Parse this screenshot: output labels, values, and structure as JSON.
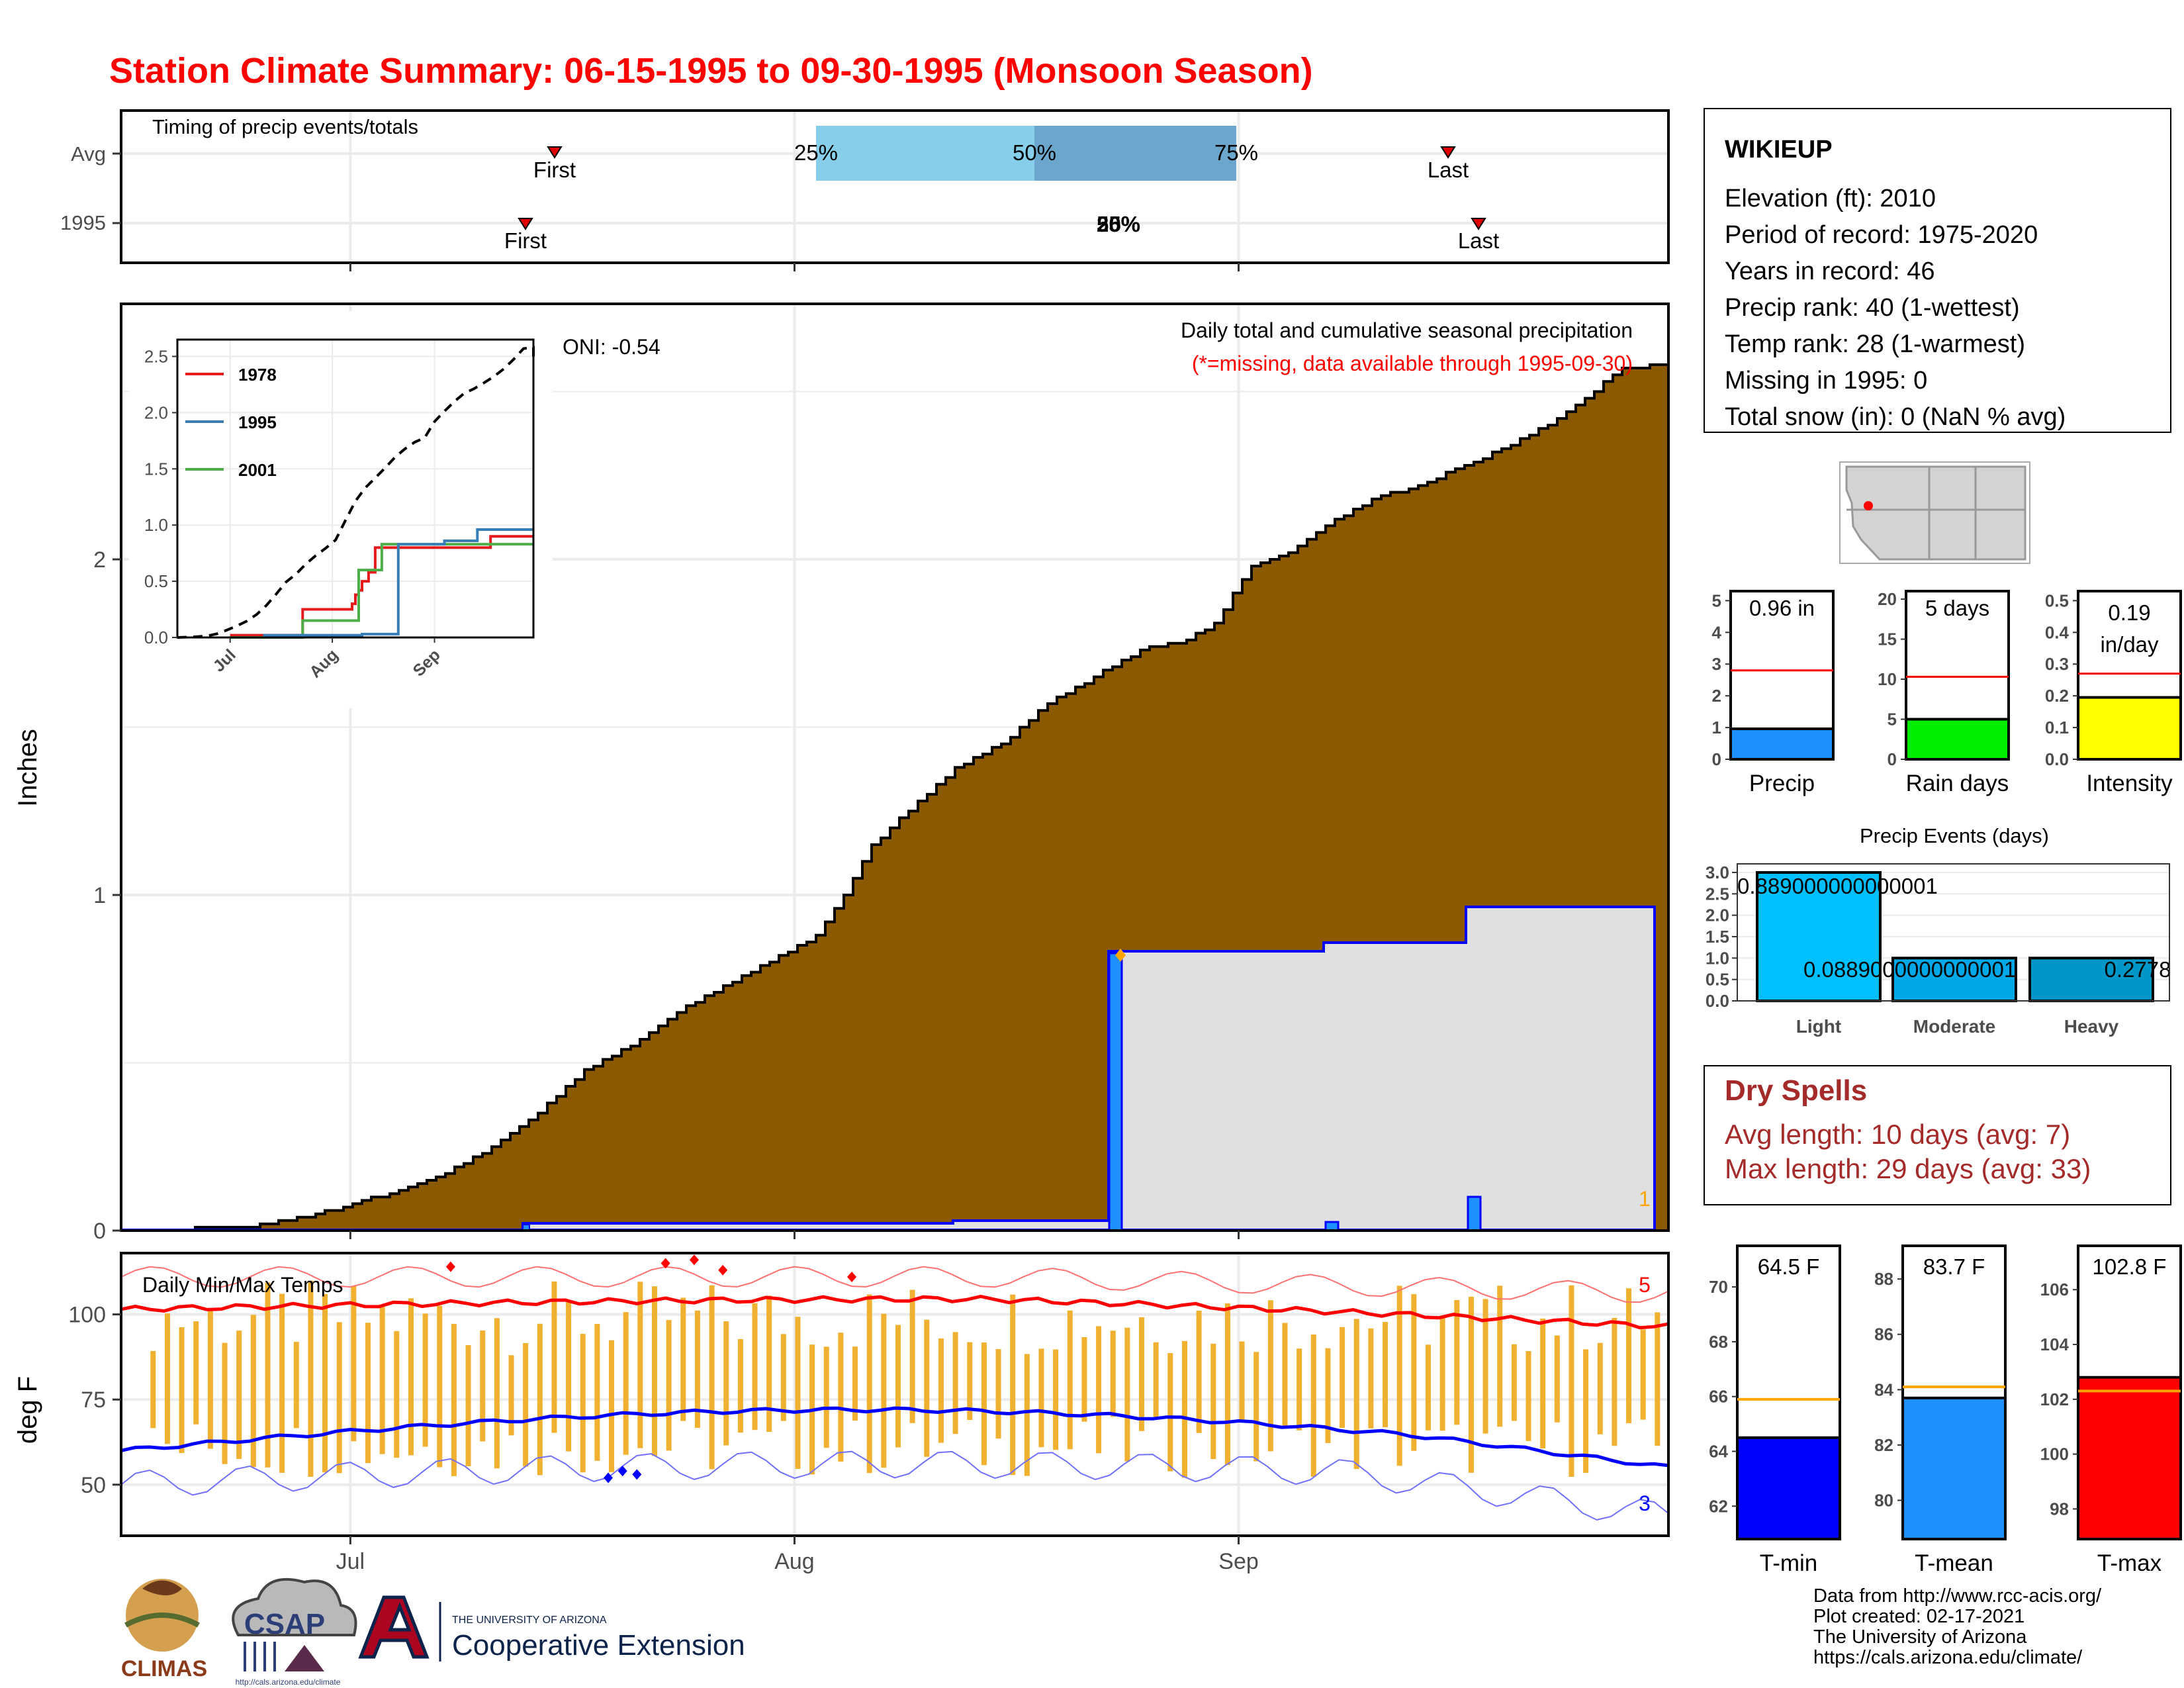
{
  "title": "Station Climate Summary: 06-15-1995 to 09-30-1995 (Monsoon Season)",
  "colors": {
    "title": "#ff0000",
    "cum_fill": "#8B5A00",
    "year_fill": "#e0e0e0",
    "year_line": "#0000ff",
    "bar": "#1e90ff",
    "tmax": "#ff0000",
    "tmin": "#0000ff",
    "temp_bar": "#f0b030",
    "dry": "#a52a2a",
    "quartile_light": "#87ceeb",
    "quartile_dark": "#6ca6cd"
  },
  "timing": {
    "title": "Timing of precip events/totals",
    "rows": [
      "Avg",
      "1995"
    ],
    "avg": {
      "first_label": "First",
      "last_label": "Last",
      "q25": "25%",
      "q50": "50%",
      "q75": "75%"
    },
    "year": {
      "first_label": "First",
      "last_label": "Last",
      "overlap_label": "50%",
      "overlap_label2": "25%"
    }
  },
  "main": {
    "ylabel": "Inches",
    "yticks": [
      "0",
      "1",
      "2"
    ],
    "xticks": [
      "Jul",
      "Aug",
      "Sep"
    ],
    "annotation_title": "Daily total and cumulative seasonal precipitation",
    "annotation_missing": "(*=missing, data available through 1995-09-30)",
    "oni": "ONI: -0.54",
    "count_label": "1"
  },
  "inset": {
    "yticks": [
      "0.0",
      "0.5",
      "1.0",
      "1.5",
      "2.0",
      "2.5"
    ],
    "xticks": [
      "Jul",
      "Aug",
      "Sep"
    ],
    "legend": [
      {
        "name": "1978",
        "color": "#e41a1c"
      },
      {
        "name": "1995",
        "color": "#377eb8"
      },
      {
        "name": "2001",
        "color": "#4daf4a"
      }
    ]
  },
  "temps": {
    "ylabel": "deg F",
    "yticks": [
      "50",
      "75",
      "100"
    ],
    "title": "Daily Min/Max Temps",
    "max_count": "5",
    "min_count": "3"
  },
  "station": {
    "name": "WIKIEUP",
    "lines": [
      "Elevation (ft): 2010",
      "Period of record: 1975-2020",
      "Years in record: 46",
      "Precip rank: 40 (1-wettest)",
      "Temp rank: 28 (1-warmest)",
      "Missing in 1995: 0",
      "Total snow (in): 0 (NaN % avg)"
    ]
  },
  "small_bars": [
    {
      "label": "Precip",
      "value_text": "0.96 in",
      "value": 0.96,
      "avg": 2.8,
      "ymax": 5.3,
      "ticks": [
        "0",
        "1",
        "2",
        "3",
        "4",
        "5"
      ],
      "tickvals": [
        0,
        1,
        2,
        3,
        4,
        5
      ],
      "color": "#1e90ff"
    },
    {
      "label": "Rain days",
      "value_text": "5 days",
      "value": 5,
      "avg": 10.3,
      "ymax": 21,
      "ticks": [
        "0",
        "5",
        "10",
        "15",
        "20"
      ],
      "tickvals": [
        0,
        5,
        10,
        15,
        20
      ],
      "color": "#00ee00"
    },
    {
      "label": "Intensity",
      "value_text": "0.19 in/day",
      "value_text_a": "0.19",
      "value_text_b": "in/day",
      "value": 0.195,
      "avg": 0.27,
      "ymax": 0.53,
      "ticks": [
        "0.0",
        "0.1",
        "0.2",
        "0.3",
        "0.4",
        "0.5"
      ],
      "tickvals": [
        0,
        0.1,
        0.2,
        0.3,
        0.4,
        0.5
      ],
      "color": "#ffff00"
    }
  ],
  "events": {
    "title": "Precip Events (days)",
    "categories": [
      "Light",
      "Moderate",
      "Heavy"
    ],
    "values": [
      3.0,
      1.0,
      1.0
    ],
    "labels": [
      "0.889000000000001",
      "0.0889000000000001",
      "0.2778"
    ],
    "yticks": [
      "0.0",
      "0.5",
      "1.0",
      "1.5",
      "2.0",
      "2.5",
      "3.0"
    ],
    "tickvals": [
      0,
      0.5,
      1,
      1.5,
      2,
      2.5,
      3
    ]
  },
  "dry_spells": {
    "title": "Dry Spells",
    "avg": "Avg length: 10 days (avg: 7)",
    "max": "Max length: 29 days (avg: 33)"
  },
  "temp_bars": [
    {
      "label": "T-min",
      "value_text": "64.5 F",
      "value": 64.5,
      "avg": 65.9,
      "ymin": 60.8,
      "ymax": 71.5,
      "ticks": [
        "62",
        "64",
        "66",
        "68",
        "70"
      ],
      "tickvals": [
        62,
        64,
        66,
        68,
        70
      ],
      "color": "#0000ff"
    },
    {
      "label": "T-mean",
      "value_text": "83.7 F",
      "value": 83.7,
      "avg": 84.1,
      "ymin": 78.6,
      "ymax": 89.2,
      "ticks": [
        "80",
        "82",
        "84",
        "86",
        "88"
      ],
      "tickvals": [
        80,
        82,
        84,
        86,
        88
      ],
      "color": "#1e90ff"
    },
    {
      "label": "T-max",
      "value_text": "102.8 F",
      "value": 102.8,
      "avg": 102.3,
      "ymin": 96.9,
      "ymax": 107.6,
      "ticks": [
        "98",
        "100",
        "102",
        "104",
        "106"
      ],
      "tickvals": [
        98,
        100,
        102,
        104,
        106
      ],
      "color": "#ff0000"
    }
  ],
  "footer": {
    "lines": [
      "Data from http://www.rcc-acis.org/",
      "Plot created: 02-17-2021",
      "The University of Arizona",
      "https://cals.arizona.edu/climate/"
    ],
    "climas": "CLIMAS",
    "csap": "CSAP",
    "csap_url": "http://cals.arizona.edu/climate",
    "ua_small": "THE UNIVERSITY OF ARIZONA",
    "ua_big": "Cooperative Extension"
  },
  "chart_data": [
    {
      "type": "area",
      "title": "Daily total and cumulative seasonal precipitation",
      "ylabel": "Inches",
      "x_range": [
        "1995-06-15",
        "1995-09-30"
      ],
      "ylim": [
        0,
        2.7
      ],
      "series": [
        {
          "values_start": "1995-06-15",
          "avg_cumulative_knots": [
            [
              0,
              0
            ],
            [
              8,
              0.005
            ],
            [
              15,
              0.015
            ],
            [
              20,
              0.04
            ],
            [
              30,
              0.12
            ],
            [
              35,
              0.17
            ],
            [
              40,
              0.25
            ],
            [
              45,
              0.35
            ],
            [
              50,
              0.48
            ],
            [
              55,
              0.55
            ],
            [
              60,
              0.65
            ],
            [
              65,
              0.73
            ],
            [
              70,
              0.8
            ],
            [
              75,
              0.88
            ],
            [
              78,
              1.0
            ],
            [
              81,
              1.15
            ],
            [
              85,
              1.25
            ],
            [
              90,
              1.38
            ],
            [
              95,
              1.45
            ],
            [
              100,
              1.57
            ],
            [
              105,
              1.65
            ],
            [
              110,
              1.73
            ],
            [
              115,
              1.76
            ],
            [
              118,
              1.81
            ],
            [
              122,
              1.98
            ],
            [
              126,
              2.02
            ],
            [
              130,
              2.1
            ],
            [
              135,
              2.18
            ],
            [
              140,
              2.22
            ],
            [
              145,
              2.28
            ],
            [
              150,
              2.34
            ],
            [
              155,
              2.42
            ],
            [
              158,
              2.48
            ],
            [
              162,
              2.57
            ],
            [
              167,
              2.58
            ]
          ]
        },
        {
          "name": "1995",
          "daily_precip": [
            [
              "1995-07-10",
              0.02
            ],
            [
              "1995-07-23",
              0.0
            ],
            [
              "1995-08-22",
              0.8
            ],
            [
              "1995-09-03",
              0.03
            ],
            [
              "1995-09-14",
              0.1
            ]
          ],
          "cumulative_steps": [
            [
              0,
              0
            ],
            [
              26,
              0
            ],
            [
              26,
              0.02
            ],
            [
              56,
              0.02
            ],
            [
              56,
              0.03
            ],
            [
              67,
              0.03
            ],
            [
              67,
              0.83
            ],
            [
              81,
              0.83
            ],
            [
              81,
              0.86
            ],
            [
              91,
              0.86
            ],
            [
              91,
              0.96
            ],
            [
              166,
              0.96
            ]
          ]
        }
      ]
    },
    {
      "type": "line",
      "title": "Daily Min/Max Temps",
      "ylabel": "deg F",
      "x_range": [
        "1995-06-15",
        "1995-09-30"
      ],
      "ylim": [
        35,
        118
      ],
      "series": [
        {
          "name": "avg max",
          "start": 101,
          "end": 95
        },
        {
          "name": "avg min",
          "start": 60,
          "peak": 72,
          "end": 56
        }
      ]
    },
    {
      "type": "line",
      "x": [
        "Jul",
        "Aug",
        "Sep"
      ],
      "ylim": [
        0,
        2.5
      ],
      "series": [
        {
          "name": "1978"
        },
        {
          "name": "1995"
        },
        {
          "name": "2001"
        }
      ]
    },
    {
      "type": "bar",
      "title": "Precip Events (days)",
      "categories": [
        "Light",
        "Moderate",
        "Heavy"
      ],
      "values": [
        3.0,
        1.0,
        1.0
      ],
      "ylim": [
        0,
        3.2
      ]
    }
  ]
}
